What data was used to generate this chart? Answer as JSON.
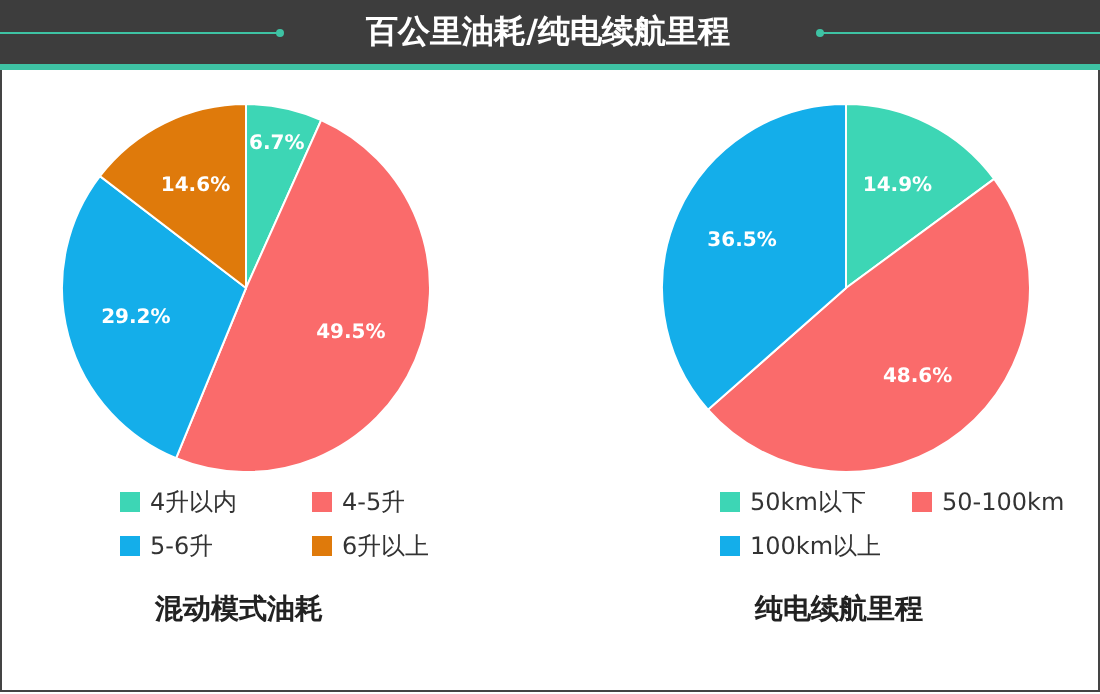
{
  "chart_data": [
    {
      "type": "pie",
      "title": "百公里油耗/纯电续航里程",
      "xlabel": "混动模式油耗",
      "categories": [
        "4升以内",
        "4-5升",
        "5-6升",
        "6升以上"
      ],
      "values": [
        6.7,
        49.5,
        29.2,
        14.6
      ],
      "value_labels": [
        "6.7%",
        "49.5%",
        "29.2%",
        "14.6%"
      ],
      "colors": [
        "#3dd6b5",
        "#fa6b6b",
        "#14aeea",
        "#df7a0b"
      ],
      "legend": "bottom"
    },
    {
      "type": "pie",
      "xlabel": "纯电续航里程",
      "categories": [
        "50km以下",
        "50-100km",
        "100km以上"
      ],
      "values": [
        14.9,
        48.6,
        36.5
      ],
      "value_labels": [
        "14.9%",
        "48.6%",
        "36.5%"
      ],
      "colors": [
        "#3dd6b5",
        "#fa6b6b",
        "#14aeea"
      ],
      "legend": "bottom"
    }
  ]
}
